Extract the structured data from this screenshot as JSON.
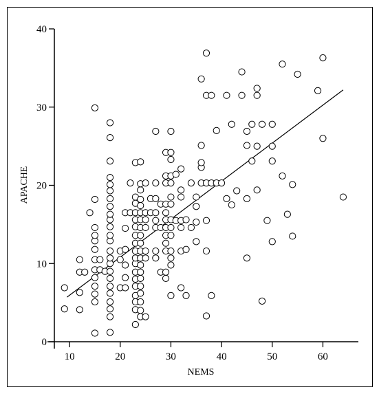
{
  "chart_data": {
    "type": "scatter",
    "title": "",
    "xlabel": "NEMS",
    "ylabel": "APACHE",
    "xlim": [
      7,
      67
    ],
    "ylim": [
      0,
      40
    ],
    "xticks": [
      10,
      20,
      30,
      40,
      50,
      60
    ],
    "yticks": [
      0,
      10,
      20,
      30,
      40
    ],
    "grid": false,
    "marker": "open-circle",
    "marker_color": "#000000",
    "trendline": {
      "type": "linear",
      "x": [
        9.5,
        64
      ],
      "y": [
        5.7,
        32.2
      ]
    },
    "points": [
      [
        9,
        4.2
      ],
      [
        9,
        6.9
      ],
      [
        12,
        4.1
      ],
      [
        12,
        6.3
      ],
      [
        12,
        8.9
      ],
      [
        12,
        10.5
      ],
      [
        13,
        8.9
      ],
      [
        14,
        16.5
      ],
      [
        15,
        1.1
      ],
      [
        15,
        5.1
      ],
      [
        15,
        6.1
      ],
      [
        15,
        7.1
      ],
      [
        15,
        8.2
      ],
      [
        15,
        9.2
      ],
      [
        15,
        10.5
      ],
      [
        15,
        11.8
      ],
      [
        15,
        12.9
      ],
      [
        15,
        13.6
      ],
      [
        15,
        14.6
      ],
      [
        15,
        18.2
      ],
      [
        15,
        29.9
      ],
      [
        16,
        9.2
      ],
      [
        16,
        10.5
      ],
      [
        17,
        9.0
      ],
      [
        18,
        1.2
      ],
      [
        18,
        3.2
      ],
      [
        18,
        4.2
      ],
      [
        18,
        5.1
      ],
      [
        18,
        6.2
      ],
      [
        18,
        7.1
      ],
      [
        18,
        8.1
      ],
      [
        18,
        9.0
      ],
      [
        18,
        10.0
      ],
      [
        18,
        10.7
      ],
      [
        18,
        11.6
      ],
      [
        18,
        12.9
      ],
      [
        18,
        13.6
      ],
      [
        18,
        14.7
      ],
      [
        18,
        15.6
      ],
      [
        18,
        16.3
      ],
      [
        18,
        17.3
      ],
      [
        18,
        18.3
      ],
      [
        18,
        19.3
      ],
      [
        18,
        20.1
      ],
      [
        18,
        21.0
      ],
      [
        18,
        23.1
      ],
      [
        18,
        26.1
      ],
      [
        18,
        28.0
      ],
      [
        20,
        6.9
      ],
      [
        20,
        10.5
      ],
      [
        20,
        11.6
      ],
      [
        21,
        6.9
      ],
      [
        21,
        8.2
      ],
      [
        21,
        9.8
      ],
      [
        21,
        11.8
      ],
      [
        21,
        14.5
      ],
      [
        21,
        16.5
      ],
      [
        22,
        16.5
      ],
      [
        22,
        20.3
      ],
      [
        23,
        2.2
      ],
      [
        23,
        4.1
      ],
      [
        23,
        5.1
      ],
      [
        23,
        5.9
      ],
      [
        23,
        7.1
      ],
      [
        23,
        8.0
      ],
      [
        23,
        8.9
      ],
      [
        23,
        10.0
      ],
      [
        23,
        10.7
      ],
      [
        23,
        11.6
      ],
      [
        23,
        12.6
      ],
      [
        23,
        13.6
      ],
      [
        23,
        14.7
      ],
      [
        23,
        15.6
      ],
      [
        23,
        16.5
      ],
      [
        23,
        17.7
      ],
      [
        23,
        18.5
      ],
      [
        23,
        22.9
      ],
      [
        24,
        3.2
      ],
      [
        24,
        4.0
      ],
      [
        24,
        5.1
      ],
      [
        24,
        6.2
      ],
      [
        24,
        7.1
      ],
      [
        24,
        8.1
      ],
      [
        24,
        8.9
      ],
      [
        24,
        9.8
      ],
      [
        24,
        10.7
      ],
      [
        24,
        11.6
      ],
      [
        24,
        12.6
      ],
      [
        24,
        13.6
      ],
      [
        24,
        14.6
      ],
      [
        24,
        15.6
      ],
      [
        24,
        16.5
      ],
      [
        24,
        17.4
      ],
      [
        24,
        18.2
      ],
      [
        24,
        19.4
      ],
      [
        24,
        20.2
      ],
      [
        24,
        23.0
      ],
      [
        25,
        3.2
      ],
      [
        25,
        10.7
      ],
      [
        25,
        11.6
      ],
      [
        25,
        14.6
      ],
      [
        25,
        15.6
      ],
      [
        25,
        16.5
      ],
      [
        25,
        20.3
      ],
      [
        26,
        16.5
      ],
      [
        26,
        18.3
      ],
      [
        27,
        10.7
      ],
      [
        27,
        11.6
      ],
      [
        27,
        14.6
      ],
      [
        27,
        15.5
      ],
      [
        27,
        16.5
      ],
      [
        27,
        18.3
      ],
      [
        27,
        20.3
      ],
      [
        27,
        26.9
      ],
      [
        28,
        8.9
      ],
      [
        28,
        14.6
      ],
      [
        28,
        17.6
      ],
      [
        29,
        8.1
      ],
      [
        29,
        8.9
      ],
      [
        29,
        11.6
      ],
      [
        29,
        12.6
      ],
      [
        29,
        13.6
      ],
      [
        29,
        14.6
      ],
      [
        29,
        15.6
      ],
      [
        29,
        16.5
      ],
      [
        29,
        17.6
      ],
      [
        29,
        20.3
      ],
      [
        29,
        21.2
      ],
      [
        29,
        24.2
      ],
      [
        30,
        5.9
      ],
      [
        30,
        9.8
      ],
      [
        30,
        10.7
      ],
      [
        30,
        11.6
      ],
      [
        30,
        13.6
      ],
      [
        30,
        14.6
      ],
      [
        30,
        15.6
      ],
      [
        30,
        17.6
      ],
      [
        30,
        18.5
      ],
      [
        30,
        20.3
      ],
      [
        30,
        21.2
      ],
      [
        30,
        23.3
      ],
      [
        30,
        24.2
      ],
      [
        30,
        26.9
      ],
      [
        31,
        15.5
      ],
      [
        31,
        21.4
      ],
      [
        32,
        6.9
      ],
      [
        32,
        11.6
      ],
      [
        32,
        14.6
      ],
      [
        32,
        15.5
      ],
      [
        32,
        18.5
      ],
      [
        32,
        19.4
      ],
      [
        32,
        22.1
      ],
      [
        33,
        5.9
      ],
      [
        33,
        11.8
      ],
      [
        33,
        15.6
      ],
      [
        34,
        14.6
      ],
      [
        34,
        20.3
      ],
      [
        35,
        12.8
      ],
      [
        35,
        15.3
      ],
      [
        35,
        17.3
      ],
      [
        35,
        18.5
      ],
      [
        36,
        20.3
      ],
      [
        36,
        22.3
      ],
      [
        36,
        22.9
      ],
      [
        36,
        25.1
      ],
      [
        36,
        33.6
      ],
      [
        37,
        3.3
      ],
      [
        37,
        11.6
      ],
      [
        37,
        15.5
      ],
      [
        37,
        20.3
      ],
      [
        37,
        31.5
      ],
      [
        37,
        36.9
      ],
      [
        38,
        5.9
      ],
      [
        38,
        20.3
      ],
      [
        38,
        31.5
      ],
      [
        39,
        20.3
      ],
      [
        39,
        27.0
      ],
      [
        40,
        20.3
      ],
      [
        41,
        18.3
      ],
      [
        41,
        31.5
      ],
      [
        42,
        17.5
      ],
      [
        42,
        27.8
      ],
      [
        43,
        19.3
      ],
      [
        44,
        31.5
      ],
      [
        44,
        34.5
      ],
      [
        45,
        10.7
      ],
      [
        45,
        18.3
      ],
      [
        45,
        25.1
      ],
      [
        45,
        26.9
      ],
      [
        46,
        23.1
      ],
      [
        46,
        27.8
      ],
      [
        47,
        19.4
      ],
      [
        47,
        25.0
      ],
      [
        47,
        31.5
      ],
      [
        47,
        32.4
      ],
      [
        48,
        5.2
      ],
      [
        48,
        27.8
      ],
      [
        49,
        15.5
      ],
      [
        50,
        12.8
      ],
      [
        50,
        23.1
      ],
      [
        50,
        25.0
      ],
      [
        50,
        27.8
      ],
      [
        52,
        21.2
      ],
      [
        52,
        35.5
      ],
      [
        53,
        16.3
      ],
      [
        54,
        13.5
      ],
      [
        54,
        20.1
      ],
      [
        55,
        34.2
      ],
      [
        59,
        32.1
      ],
      [
        60,
        26.0
      ],
      [
        60,
        36.3
      ],
      [
        64,
        18.5
      ]
    ]
  }
}
